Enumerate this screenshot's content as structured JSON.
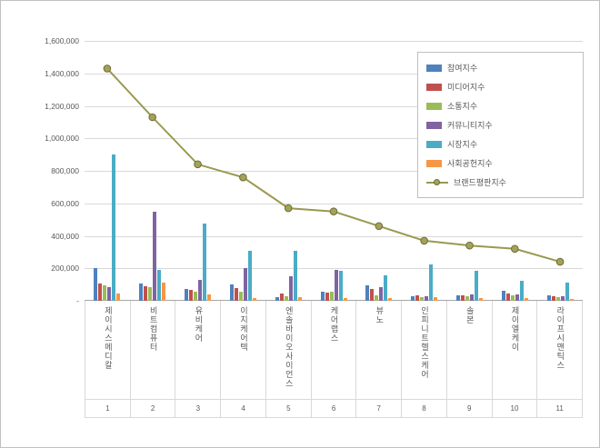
{
  "chart_data": {
    "type": "combo",
    "title": "",
    "categories": [
      {
        "name": "제이시스메디칼",
        "rank": "1"
      },
      {
        "name": "비트컴퓨터",
        "rank": "2"
      },
      {
        "name": "유비케어",
        "rank": "3"
      },
      {
        "name": "이지케어텍",
        "rank": "4"
      },
      {
        "name": "엔솔바이오사이언스",
        "rank": "5"
      },
      {
        "name": "케어랩스",
        "rank": "6"
      },
      {
        "name": "뷰노",
        "rank": "7"
      },
      {
        "name": "인피니트헬스케어",
        "rank": "8"
      },
      {
        "name": "솔본",
        "rank": "9"
      },
      {
        "name": "제이엘케이",
        "rank": "10"
      },
      {
        "name": "라이프시맨틱스",
        "rank": "11"
      }
    ],
    "bar_series": [
      {
        "name": "참여지수",
        "color": "#4F81BD",
        "values": [
          200000,
          105000,
          75000,
          100000,
          20000,
          55000,
          95000,
          30000,
          35000,
          60000,
          35000
        ]
      },
      {
        "name": "미디어지수",
        "color": "#C0504D",
        "values": [
          105000,
          90000,
          65000,
          80000,
          45000,
          50000,
          75000,
          35000,
          35000,
          45000,
          30000
        ]
      },
      {
        "name": "소통지수",
        "color": "#9BBB59",
        "values": [
          95000,
          85000,
          55000,
          55000,
          30000,
          55000,
          35000,
          25000,
          30000,
          35000,
          25000
        ]
      },
      {
        "name": "커뮤니티지수",
        "color": "#8064A2",
        "values": [
          85000,
          550000,
          130000,
          200000,
          150000,
          190000,
          85000,
          30000,
          40000,
          40000,
          30000
        ]
      },
      {
        "name": "시장지수",
        "color": "#4BACC6",
        "values": [
          900000,
          190000,
          475000,
          310000,
          305000,
          185000,
          155000,
          225000,
          185000,
          125000,
          110000
        ]
      },
      {
        "name": "사회공헌지수",
        "color": "#F79646",
        "values": [
          45000,
          110000,
          40000,
          15000,
          20000,
          15000,
          15000,
          25000,
          15000,
          15000,
          10000
        ]
      }
    ],
    "line_series": {
      "name": "브랜드평판지수",
      "color": "#9a994f",
      "marker_fill": "#a3a258",
      "marker_edge": "#6f6e3a",
      "values": [
        1430000,
        1130000,
        840000,
        760000,
        570000,
        550000,
        460000,
        370000,
        340000,
        320000,
        240000
      ]
    },
    "y_axis": {
      "min": 0,
      "max": 1600000,
      "step": 200000,
      "tick_labels": [
        "1,600,000",
        "1,400,000",
        "1,200,000",
        "1,000,000",
        "800,000",
        "600,000",
        "400,000",
        "200,000",
        "-"
      ]
    },
    "legend": {
      "position": "top-right"
    },
    "grid": true
  }
}
